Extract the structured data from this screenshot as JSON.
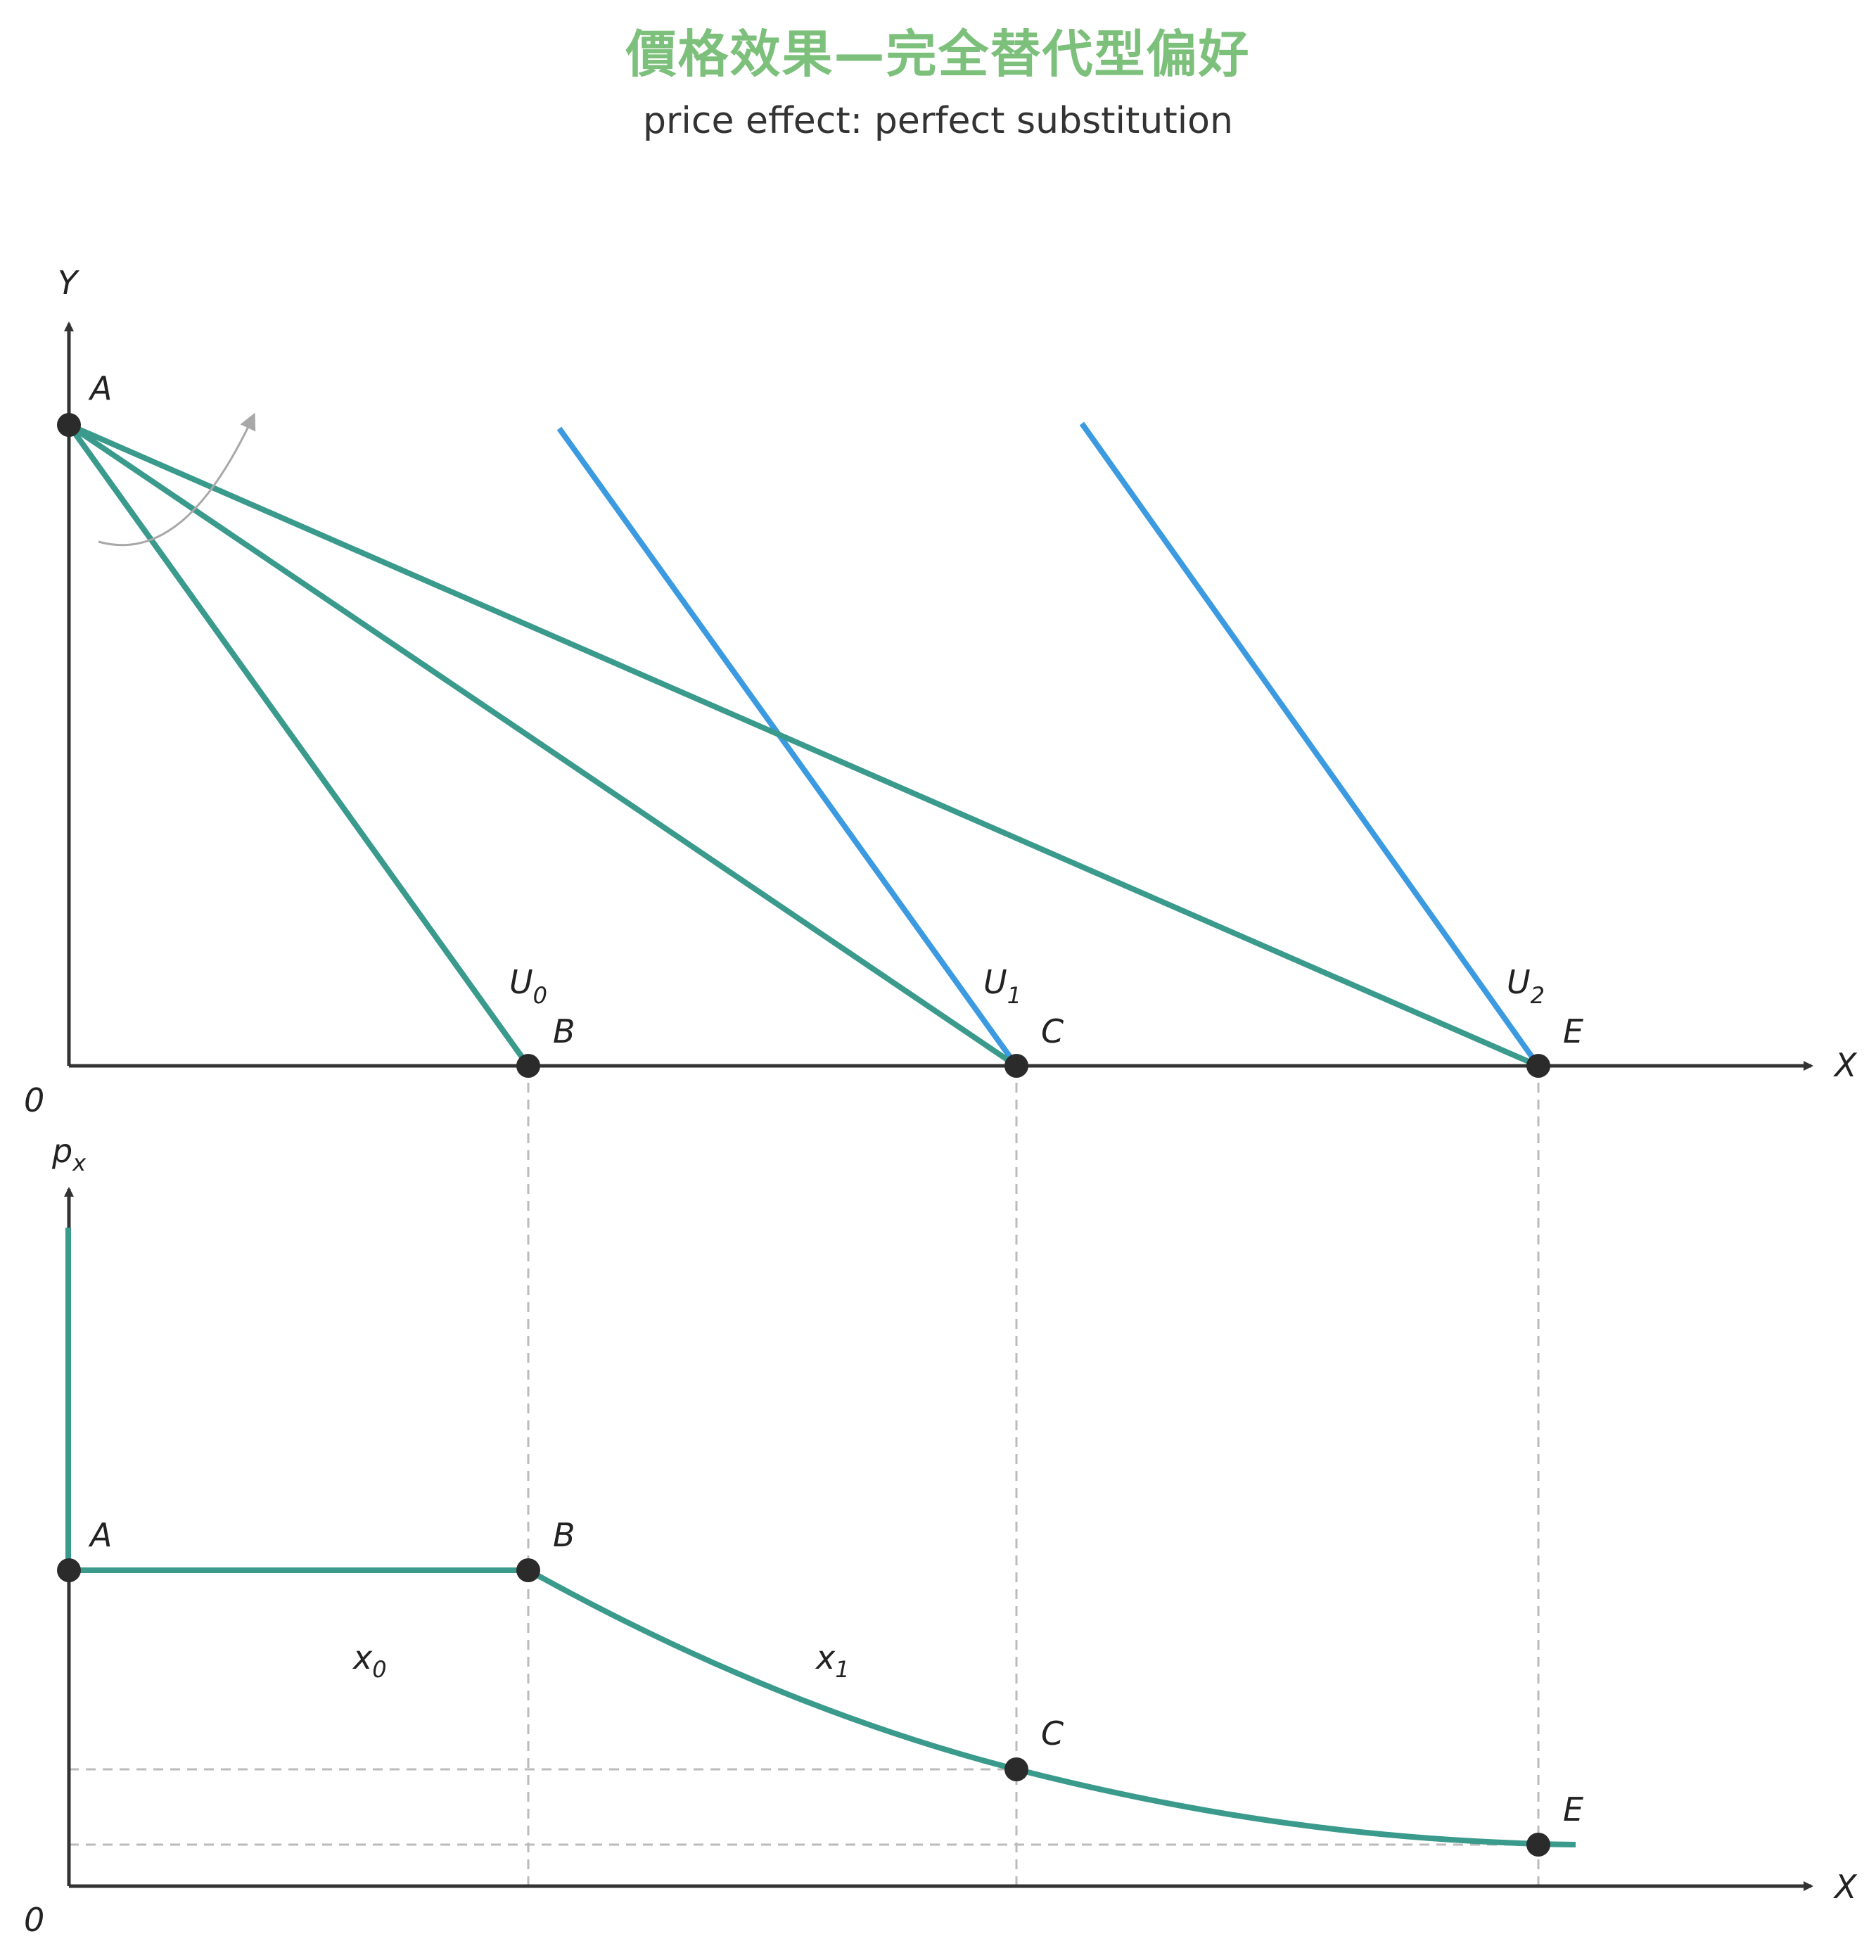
{
  "title": "價格效果—完全替代型偏好",
  "subtitle": "price effect: perfect substitution",
  "colors": {
    "budget_line": "#3a9a8c",
    "indifference": "#3c9be0",
    "axis": "#333333",
    "guide": "#bbbbbb",
    "arrow": "#a8a8a8",
    "point": "#2b2b2b",
    "title": "#7cc07c"
  },
  "top_panel": {
    "y_axis_label": "Y",
    "x_axis_label": "X",
    "origin_label": "0",
    "points": {
      "A": "A",
      "B": "B",
      "C": "C",
      "E": "E"
    },
    "indifference_labels": [
      {
        "main": "U",
        "sub": "0"
      },
      {
        "main": "U",
        "sub": "1"
      },
      {
        "main": "U",
        "sub": "2"
      }
    ]
  },
  "bottom_panel": {
    "y_axis_label": {
      "main": "p",
      "sub": "x"
    },
    "x_axis_label": "X",
    "origin_label": "0",
    "points": {
      "A": "A",
      "B": "B",
      "C": "C",
      "E": "E"
    },
    "segment_labels": [
      {
        "main": "x",
        "sub": "0"
      },
      {
        "main": "x",
        "sub": "1"
      }
    ]
  }
}
